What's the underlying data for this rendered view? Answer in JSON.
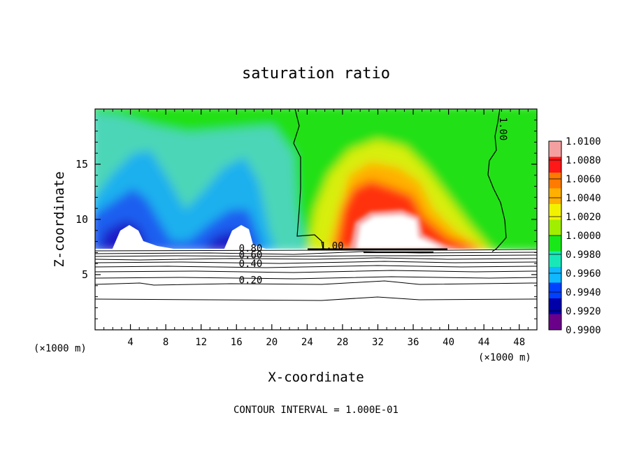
{
  "chart_data": {
    "type": "heatmap",
    "title": "saturation ratio",
    "xlabel": "X-coordinate",
    "ylabel": "Z-coordinate",
    "x_unit_label_left": "(×1000 m)",
    "x_unit_label_right": "(×1000 m)",
    "footer": "CONTOUR INTERVAL = 1.000E-01",
    "xlim": [
      0,
      50
    ],
    "ylim": [
      0,
      20
    ],
    "x_ticks": [
      "4",
      "8",
      "12",
      "16",
      "20",
      "24",
      "28",
      "32",
      "36",
      "40",
      "44",
      "48"
    ],
    "x_tick_values": [
      4,
      8,
      12,
      16,
      20,
      24,
      28,
      32,
      36,
      40,
      44,
      48
    ],
    "y_ticks": [
      "5",
      "10",
      "15"
    ],
    "y_tick_values": [
      5,
      10,
      15
    ],
    "colorbar": {
      "labels": [
        "1.0100",
        "1.0080",
        "1.0060",
        "1.0040",
        "1.0020",
        "1.0000",
        "0.9980",
        "0.9960",
        "0.9940",
        "0.9920",
        "0.9900"
      ],
      "values": [
        1.01,
        1.008,
        1.006,
        1.004,
        1.002,
        1.0,
        0.998,
        0.996,
        0.994,
        0.992,
        0.99
      ],
      "colors": [
        "#f4a0a0",
        "#ff1818",
        "#ff7a00",
        "#ffb000",
        "#f2f200",
        "#a0ee00",
        "#18e818",
        "#18e8b8",
        "#10b8ff",
        "#0040ff",
        "#0000a8",
        "#6a008a"
      ]
    },
    "contour_labels": [
      {
        "text": "0.80",
        "x": 17.6,
        "y": 7.1
      },
      {
        "text": "0.60",
        "x": 17.6,
        "y": 6.5
      },
      {
        "text": "0.40",
        "x": 17.6,
        "y": 5.7
      },
      {
        "text": "0.20",
        "x": 17.6,
        "y": 4.2
      },
      {
        "text": "1.00",
        "x": 26.8,
        "y": 7.3
      },
      {
        "text": "1.00",
        "x": 45.8,
        "y": 18.2
      }
    ]
  }
}
